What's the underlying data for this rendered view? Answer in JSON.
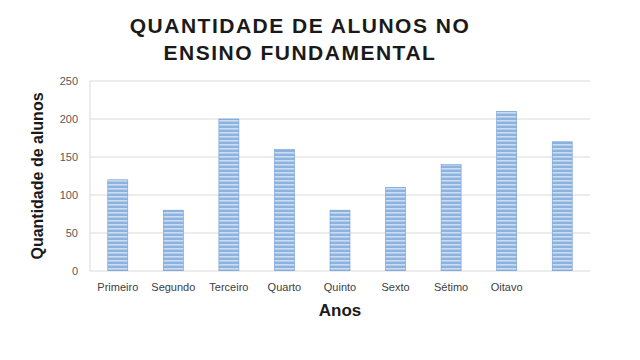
{
  "chart_data": {
    "type": "bar",
    "title": "QUANTIDADE DE ALUNOS NO ENSINO FUNDAMENTAL",
    "x_label": "Anos",
    "y_label": "Quantidade de alunos",
    "categories": [
      "Primeiro",
      "Segundo",
      "Terceiro",
      "Quarto",
      "Quinto",
      "Sexto",
      "Sétimo",
      "Oitavo",
      null
    ],
    "values": [
      120,
      80,
      200,
      160,
      80,
      110,
      140,
      210,
      170
    ],
    "color": "#8cb2e0",
    "ylim": [
      0,
      250
    ],
    "yticks": [
      0,
      50,
      100,
      150,
      200,
      250
    ],
    "grid": true
  }
}
